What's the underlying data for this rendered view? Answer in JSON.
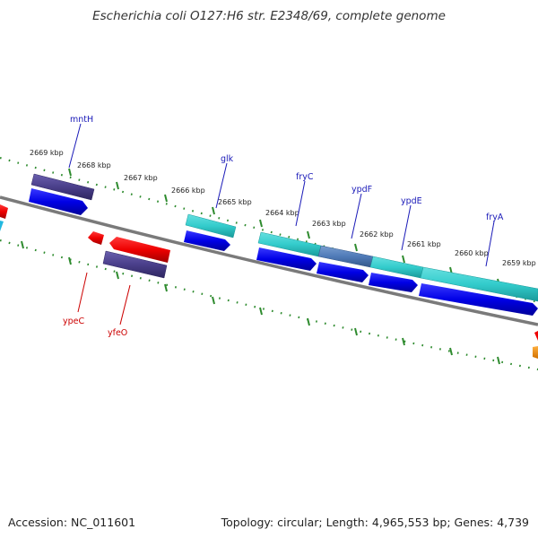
{
  "title": "Escherichia coli O127:H6 str. E2348/69, complete genome",
  "footer": {
    "accession": "Accession: NC_011601",
    "stats": "Topology: circular; Length: 4,965,553 bp; Genes: 4,739"
  },
  "scale_labels": [
    "2669 kbp",
    "2668 kbp",
    "2667 kbp",
    "2666 kbp",
    "2665 kbp",
    "2664 kbp",
    "2663 kbp",
    "2662 kbp",
    "2661 kbp",
    "2660 kbp",
    "2659 kbp"
  ],
  "gene_labels": {
    "forward": [
      "mntH",
      "glk",
      "fryC",
      "ypdF",
      "ypdE",
      "fryA"
    ],
    "reverse": [
      "ypeC",
      "yfeO"
    ]
  },
  "colors": {
    "forward_label": "#1a1ab8",
    "reverse_label": "#cc0000",
    "cds_forward": "#0000ee",
    "cds_reverse": "#ee0000",
    "feature_cyan": "#33cccc",
    "feature_purple": "#4a3f8a",
    "tick": "#2e8b2e",
    "backbone": "#888888"
  }
}
